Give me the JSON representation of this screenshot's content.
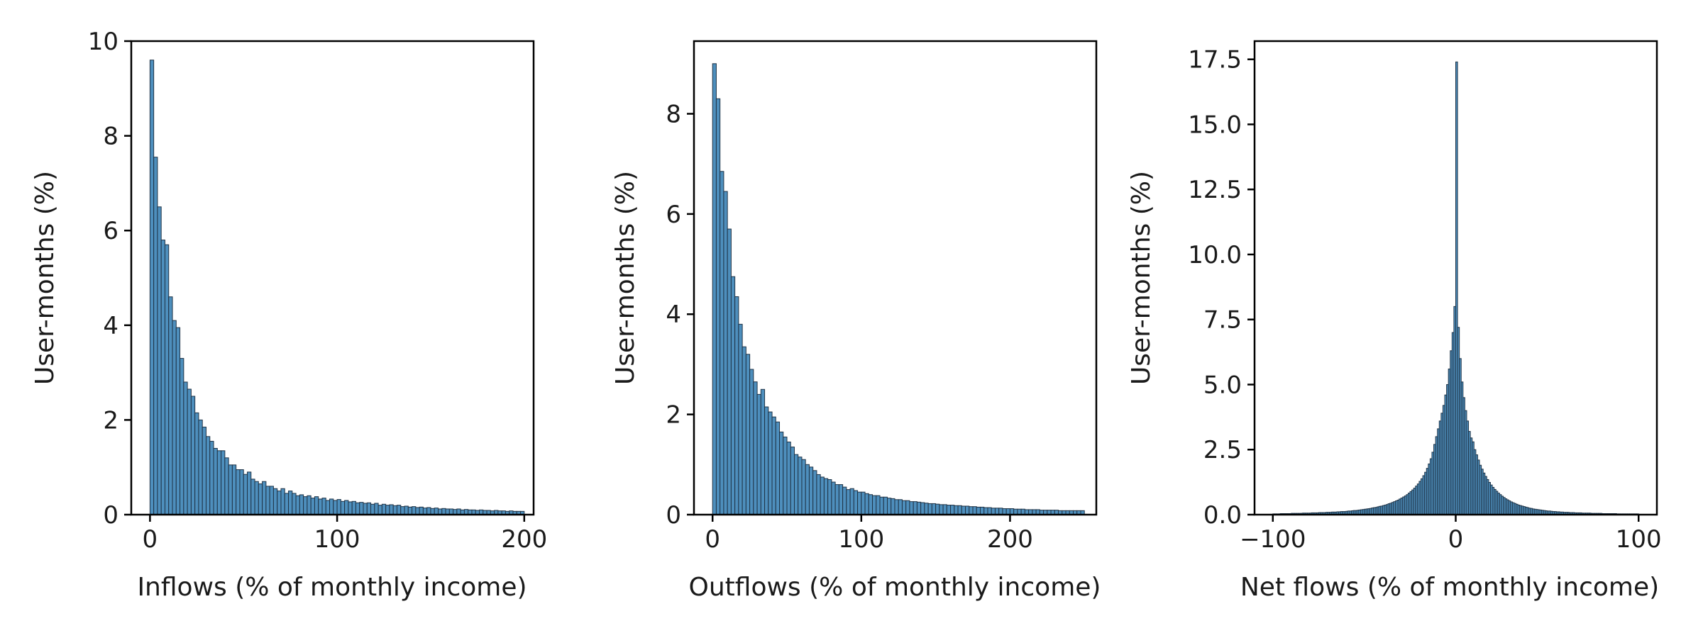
{
  "chart_data": [
    {
      "type": "bar",
      "xlabel": "Inflows (% of monthly income)",
      "ylabel": "User-months (%)",
      "xlim": [
        -10,
        205
      ],
      "ylim": [
        0,
        10
      ],
      "xticks": [
        0,
        100,
        200
      ],
      "xtick_labels": [
        "0",
        "100",
        "200"
      ],
      "yticks": [
        0,
        2,
        4,
        6,
        8,
        10
      ],
      "ytick_labels": [
        "0",
        "2",
        "4",
        "6",
        "8",
        "10"
      ],
      "bin_start": 0,
      "bin_width": 2,
      "values": [
        9.6,
        7.55,
        6.5,
        5.8,
        5.7,
        4.6,
        4.1,
        3.95,
        3.3,
        2.8,
        2.65,
        2.5,
        2.15,
        2.0,
        1.85,
        1.65,
        1.55,
        1.4,
        1.35,
        1.35,
        1.2,
        1.05,
        1.05,
        0.95,
        0.95,
        0.85,
        0.9,
        0.75,
        0.7,
        0.65,
        0.7,
        0.6,
        0.6,
        0.55,
        0.5,
        0.55,
        0.45,
        0.5,
        0.45,
        0.4,
        0.42,
        0.38,
        0.4,
        0.35,
        0.38,
        0.33,
        0.35,
        0.3,
        0.33,
        0.3,
        0.32,
        0.28,
        0.3,
        0.27,
        0.28,
        0.25,
        0.26,
        0.24,
        0.25,
        0.22,
        0.24,
        0.2,
        0.22,
        0.2,
        0.21,
        0.19,
        0.2,
        0.17,
        0.18,
        0.16,
        0.17,
        0.15,
        0.16,
        0.14,
        0.15,
        0.13,
        0.14,
        0.12,
        0.13,
        0.12,
        0.12,
        0.11,
        0.12,
        0.1,
        0.11,
        0.1,
        0.1,
        0.09,
        0.1,
        0.09,
        0.09,
        0.08,
        0.09,
        0.08,
        0.08,
        0.07,
        0.08,
        0.07,
        0.07,
        0.07
      ],
      "color": "#4e8fbd",
      "edge_color": "#1f3346"
    },
    {
      "type": "bar",
      "xlabel": "Outflows (% of monthly income)",
      "ylabel": "User-months (%)",
      "xlim": [
        -12.5,
        258
      ],
      "ylim": [
        0,
        9.45
      ],
      "xticks": [
        0,
        100,
        200
      ],
      "xtick_labels": [
        "0",
        "100",
        "200"
      ],
      "yticks": [
        0,
        2,
        4,
        6,
        8
      ],
      "ytick_labels": [
        "0",
        "2",
        "4",
        "6",
        "8"
      ],
      "bin_start": 0,
      "bin_width": 2.5,
      "values": [
        9.0,
        8.3,
        6.85,
        6.45,
        5.7,
        4.75,
        4.35,
        3.8,
        3.35,
        3.2,
        2.9,
        2.65,
        2.4,
        2.5,
        2.15,
        2.05,
        1.95,
        1.85,
        1.65,
        1.55,
        1.45,
        1.35,
        1.2,
        1.15,
        1.1,
        1.0,
        0.95,
        0.88,
        0.8,
        0.75,
        0.72,
        0.7,
        0.65,
        0.6,
        0.6,
        0.55,
        0.5,
        0.52,
        0.48,
        0.45,
        0.45,
        0.42,
        0.4,
        0.38,
        0.38,
        0.35,
        0.35,
        0.33,
        0.32,
        0.3,
        0.3,
        0.28,
        0.28,
        0.26,
        0.26,
        0.25,
        0.24,
        0.23,
        0.22,
        0.22,
        0.21,
        0.2,
        0.2,
        0.19,
        0.19,
        0.18,
        0.18,
        0.17,
        0.17,
        0.16,
        0.16,
        0.15,
        0.15,
        0.14,
        0.14,
        0.13,
        0.13,
        0.13,
        0.12,
        0.12,
        0.12,
        0.11,
        0.11,
        0.11,
        0.1,
        0.1,
        0.1,
        0.1,
        0.09,
        0.09,
        0.09,
        0.09,
        0.09,
        0.08,
        0.08,
        0.08,
        0.08,
        0.08,
        0.08,
        0.08
      ],
      "color": "#4e8fbd",
      "edge_color": "#1f3346"
    },
    {
      "type": "bar",
      "xlabel": "Net flows (% of monthly income)",
      "ylabel": "User-months (%)",
      "xlim": [
        -110,
        110
      ],
      "ylim": [
        0,
        18.2
      ],
      "xticks": [
        -100,
        0,
        100
      ],
      "xtick_labels": [
        "−100",
        "0",
        "100"
      ],
      "yticks": [
        0,
        2.5,
        5,
        7.5,
        10,
        12.5,
        15,
        17.5
      ],
      "ytick_labels": [
        "0.0",
        "2.5",
        "5.0",
        "7.5",
        "10.0",
        "12.5",
        "15.0",
        "17.5"
      ],
      "bin_start": -100,
      "bin_width": 1,
      "values": [
        0.03,
        0.03,
        0.03,
        0.03,
        0.04,
        0.04,
        0.04,
        0.04,
        0.04,
        0.04,
        0.05,
        0.05,
        0.05,
        0.05,
        0.05,
        0.05,
        0.06,
        0.06,
        0.06,
        0.06,
        0.06,
        0.07,
        0.07,
        0.07,
        0.07,
        0.08,
        0.08,
        0.08,
        0.08,
        0.09,
        0.09,
        0.09,
        0.1,
        0.1,
        0.1,
        0.11,
        0.11,
        0.12,
        0.12,
        0.12,
        0.13,
        0.14,
        0.14,
        0.15,
        0.16,
        0.16,
        0.17,
        0.18,
        0.19,
        0.2,
        0.21,
        0.22,
        0.23,
        0.24,
        0.26,
        0.27,
        0.28,
        0.3,
        0.32,
        0.33,
        0.35,
        0.37,
        0.39,
        0.42,
        0.44,
        0.47,
        0.5,
        0.53,
        0.56,
        0.6,
        0.64,
        0.68,
        0.72,
        0.77,
        0.83,
        0.89,
        0.95,
        1.02,
        1.1,
        1.18,
        1.28,
        1.38,
        1.5,
        1.63,
        1.78,
        1.95,
        2.15,
        2.4,
        2.7,
        3.0,
        3.3,
        3.6,
        3.9,
        4.2,
        4.6,
        5.0,
        5.6,
        6.3,
        7.0,
        8.0,
        17.4,
        7.2,
        6.0,
        5.1,
        4.5,
        4.0,
        3.6,
        3.2,
        2.95,
        2.8,
        2.5,
        2.3,
        2.1,
        1.9,
        1.75,
        1.6,
        1.47,
        1.35,
        1.24,
        1.14,
        1.05,
        0.97,
        0.9,
        0.83,
        0.77,
        0.71,
        0.66,
        0.61,
        0.57,
        0.53,
        0.49,
        0.46,
        0.43,
        0.4,
        0.37,
        0.35,
        0.33,
        0.31,
        0.29,
        0.27,
        0.25,
        0.24,
        0.22,
        0.21,
        0.2,
        0.19,
        0.18,
        0.17,
        0.16,
        0.15,
        0.14,
        0.14,
        0.13,
        0.12,
        0.12,
        0.11,
        0.11,
        0.1,
        0.1,
        0.09,
        0.09,
        0.09,
        0.08,
        0.08,
        0.08,
        0.07,
        0.07,
        0.07,
        0.07,
        0.06,
        0.06,
        0.06,
        0.06,
        0.06,
        0.05,
        0.05,
        0.05,
        0.05,
        0.05,
        0.05,
        0.04,
        0.04,
        0.04,
        0.04,
        0.04,
        0.04,
        0.04,
        0.04,
        0.03,
        0.03,
        0.03,
        0.03,
        0.03,
        0.03,
        0.03,
        0.03,
        0.03,
        0.03,
        0.03,
        0.03
      ],
      "color": "#4e8fbd",
      "edge_color": "#1f3346"
    }
  ]
}
